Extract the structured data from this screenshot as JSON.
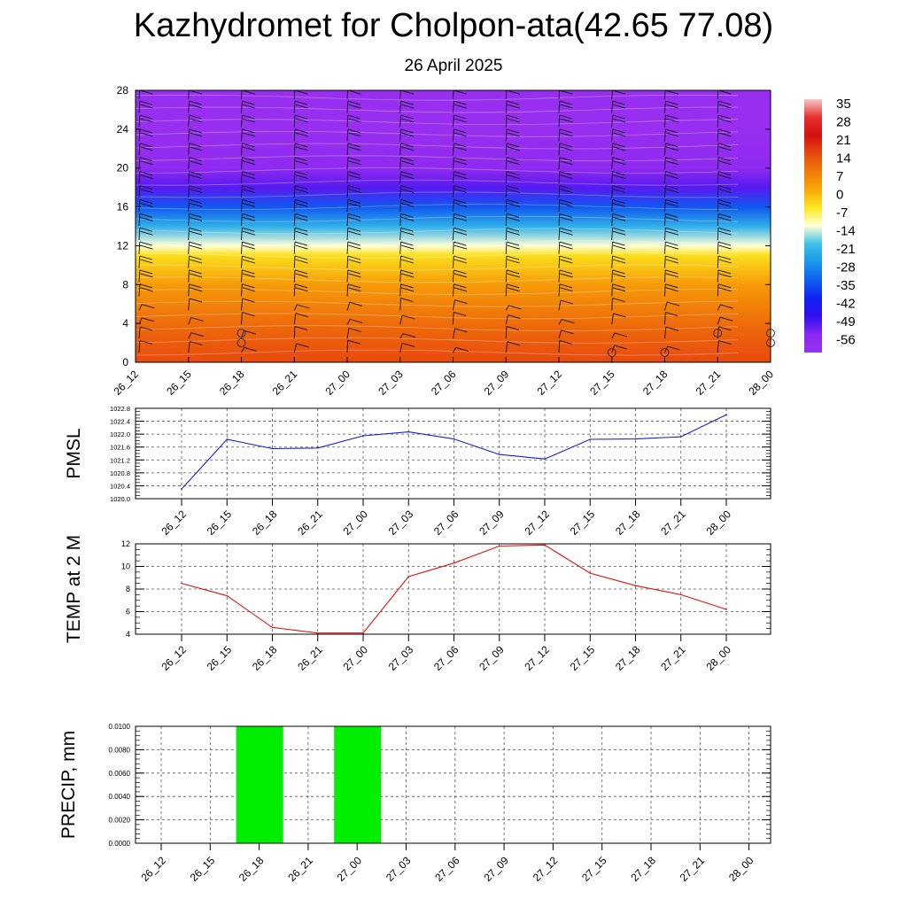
{
  "header": {
    "title": "Kazhydromet for Cholpon-ata(42.65 77.08)",
    "date": "26 April 2025"
  },
  "colors": {
    "pmsl_line": "#1a1ad6",
    "temp_line": "#e01010",
    "precip_bar": "#00ee00",
    "grid": "#555555"
  },
  "chart_data": [
    {
      "id": "cross-section",
      "type": "heatmap",
      "title": "",
      "x": [
        "26_12",
        "26_15",
        "26_18",
        "26_21",
        "27_00",
        "27_03",
        "27_06",
        "27_09",
        "27_12",
        "27_15",
        "27_18",
        "27_21",
        "28_00"
      ],
      "ylim": [
        0,
        28
      ],
      "yticks": [
        0,
        4,
        8,
        12,
        16,
        20,
        24,
        28
      ],
      "colorbar": {
        "labels": [
          "35",
          "28",
          "21",
          "14",
          "7",
          "0",
          "-7",
          "-14",
          "-21",
          "-28",
          "-35",
          "-42",
          "-49",
          "-56"
        ],
        "stops": [
          {
            "value": 35,
            "color": "#f4c6c6"
          },
          {
            "value": 28,
            "color": "#e63030"
          },
          {
            "value": 21,
            "color": "#d41010"
          },
          {
            "value": 14,
            "color": "#e84a10"
          },
          {
            "value": 7,
            "color": "#f07a08"
          },
          {
            "value": 0,
            "color": "#f8a808"
          },
          {
            "value": -7,
            "color": "#fce820"
          },
          {
            "value": -14,
            "color": "#ffffd8"
          },
          {
            "value": -21,
            "color": "#40c0e8"
          },
          {
            "value": -28,
            "color": "#1898e8"
          },
          {
            "value": -35,
            "color": "#1060f0"
          },
          {
            "value": -42,
            "color": "#1020f0"
          },
          {
            "value": -49,
            "color": "#3010f0"
          },
          {
            "value": -56,
            "color": "#8a28f0"
          },
          {
            "value": -63,
            "color": "#9a30f0"
          }
        ]
      },
      "profile": {
        "description_levels": [
          0,
          4,
          8,
          11,
          12,
          14,
          16,
          18,
          20,
          24,
          28
        ],
        "values": [
          14,
          9,
          2,
          -6,
          -14,
          -24,
          -36,
          -52,
          -58,
          -62,
          -62
        ]
      },
      "calm_circles": [
        {
          "x": "26_18",
          "y": 3
        },
        {
          "x": "26_18",
          "y": 2
        },
        {
          "x": "27_15",
          "y": 1
        },
        {
          "x": "27_18",
          "y": 1
        },
        {
          "x": "27_21",
          "y": 3
        },
        {
          "x": "28_00",
          "y": 3
        },
        {
          "x": "28_00",
          "y": 2
        }
      ]
    },
    {
      "id": "pmsl",
      "type": "line",
      "ylabel": "PMSL",
      "x": [
        "26_12",
        "26_15",
        "26_18",
        "26_21",
        "27_00",
        "27_03",
        "27_06",
        "27_09",
        "27_12",
        "27_15",
        "27_18",
        "27_21",
        "28_00"
      ],
      "series": [
        {
          "values": [
            1020.3,
            1021.84,
            1021.55,
            1021.57,
            1021.95,
            1022.07,
            1021.85,
            1021.37,
            1021.23,
            1021.84,
            1021.85,
            1021.92,
            1022.6
          ]
        }
      ],
      "ylim": [
        1020.0,
        1022.8
      ],
      "yticks": [
        "1020.0",
        "1020.4",
        "1020.8",
        "1021.2",
        "1021.6",
        "1022.0",
        "1022.4",
        "1022.8"
      ],
      "grid": true
    },
    {
      "id": "temp",
      "type": "line",
      "ylabel": "TEMP at 2 M",
      "x": [
        "26_12",
        "26_15",
        "26_18",
        "26_21",
        "27_00",
        "27_03",
        "27_06",
        "27_09",
        "27_12",
        "27_15",
        "27_18",
        "27_21",
        "28_00"
      ],
      "series": [
        {
          "values": [
            8.5,
            7.4,
            4.6,
            4.1,
            4.1,
            9.1,
            10.3,
            11.8,
            11.9,
            9.4,
            8.3,
            7.5,
            6.2
          ]
        }
      ],
      "ylim": [
        4,
        12
      ],
      "yticks": [
        "4",
        "6",
        "8",
        "10",
        "12"
      ],
      "grid": true
    },
    {
      "id": "precip",
      "type": "bar",
      "ylabel": "PRECIP, mm",
      "categories": [
        "26_12",
        "26_15",
        "26_18",
        "26_21",
        "27_00",
        "27_03",
        "27_06",
        "27_09",
        "27_12",
        "27_15",
        "27_18",
        "27_21",
        "28_00"
      ],
      "values": [
        0,
        0,
        0.01,
        0,
        0.01,
        0,
        0,
        0,
        0,
        0,
        0,
        0,
        0
      ],
      "ylim": [
        0,
        0.01
      ],
      "yticks": [
        "0.0000",
        "0.0020",
        "0.0040",
        "0.0060",
        "0.0080",
        "0.0100"
      ],
      "grid": true
    }
  ]
}
